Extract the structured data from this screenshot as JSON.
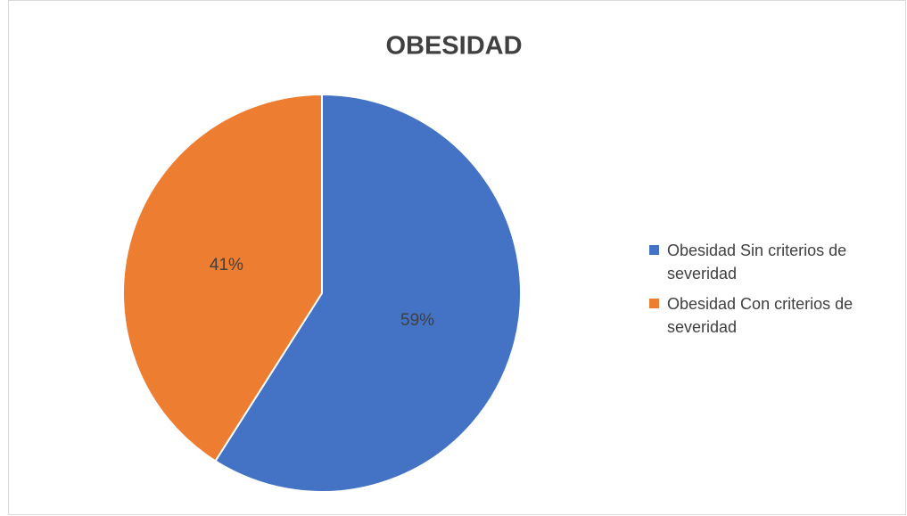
{
  "chart_data": {
    "type": "pie",
    "title": "OBESIDAD",
    "categories": [
      "Obesidad Sin criterios de severidad",
      "Obesidad Con criterios de severidad"
    ],
    "values": [
      59,
      41
    ],
    "value_labels": [
      "59%",
      "41%"
    ],
    "colors": [
      "#4472c4",
      "#ed7d31"
    ],
    "legend": "right"
  }
}
